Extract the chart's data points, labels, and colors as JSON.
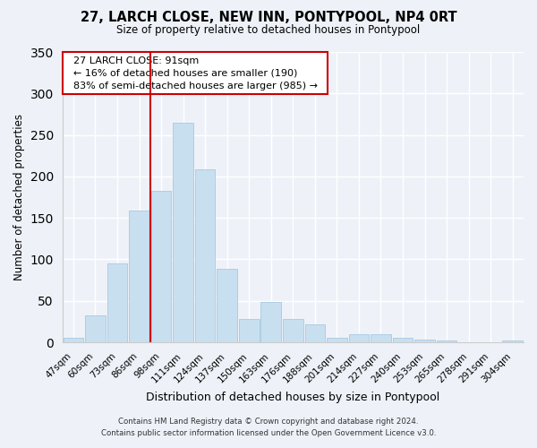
{
  "title": "27, LARCH CLOSE, NEW INN, PONTYPOOL, NP4 0RT",
  "subtitle": "Size of property relative to detached houses in Pontypool",
  "xlabel": "Distribution of detached houses by size in Pontypool",
  "ylabel": "Number of detached properties",
  "bar_color": "#c8dff0",
  "bar_edge_color": "#a8c8e0",
  "categories": [
    "47sqm",
    "60sqm",
    "73sqm",
    "86sqm",
    "98sqm",
    "111sqm",
    "124sqm",
    "137sqm",
    "150sqm",
    "163sqm",
    "176sqm",
    "188sqm",
    "201sqm",
    "214sqm",
    "227sqm",
    "240sqm",
    "253sqm",
    "265sqm",
    "278sqm",
    "291sqm",
    "304sqm"
  ],
  "values": [
    6,
    32,
    95,
    159,
    183,
    265,
    208,
    89,
    28,
    49,
    28,
    22,
    5,
    10,
    10,
    6,
    3,
    2,
    0,
    0,
    2
  ],
  "ylim": [
    0,
    350
  ],
  "yticks": [
    0,
    50,
    100,
    150,
    200,
    250,
    300,
    350
  ],
  "vline_index": 4,
  "vline_color": "#cc0000",
  "annotation_title": "27 LARCH CLOSE: 91sqm",
  "annotation_line1": "← 16% of detached houses are smaller (190)",
  "annotation_line2": "83% of semi-detached houses are larger (985) →",
  "annotation_box_color": "#ffffff",
  "annotation_box_edge": "#cc0000",
  "footer1": "Contains HM Land Registry data © Crown copyright and database right 2024.",
  "footer2": "Contains public sector information licensed under the Open Government Licence v3.0.",
  "background_color": "#eef2f8"
}
